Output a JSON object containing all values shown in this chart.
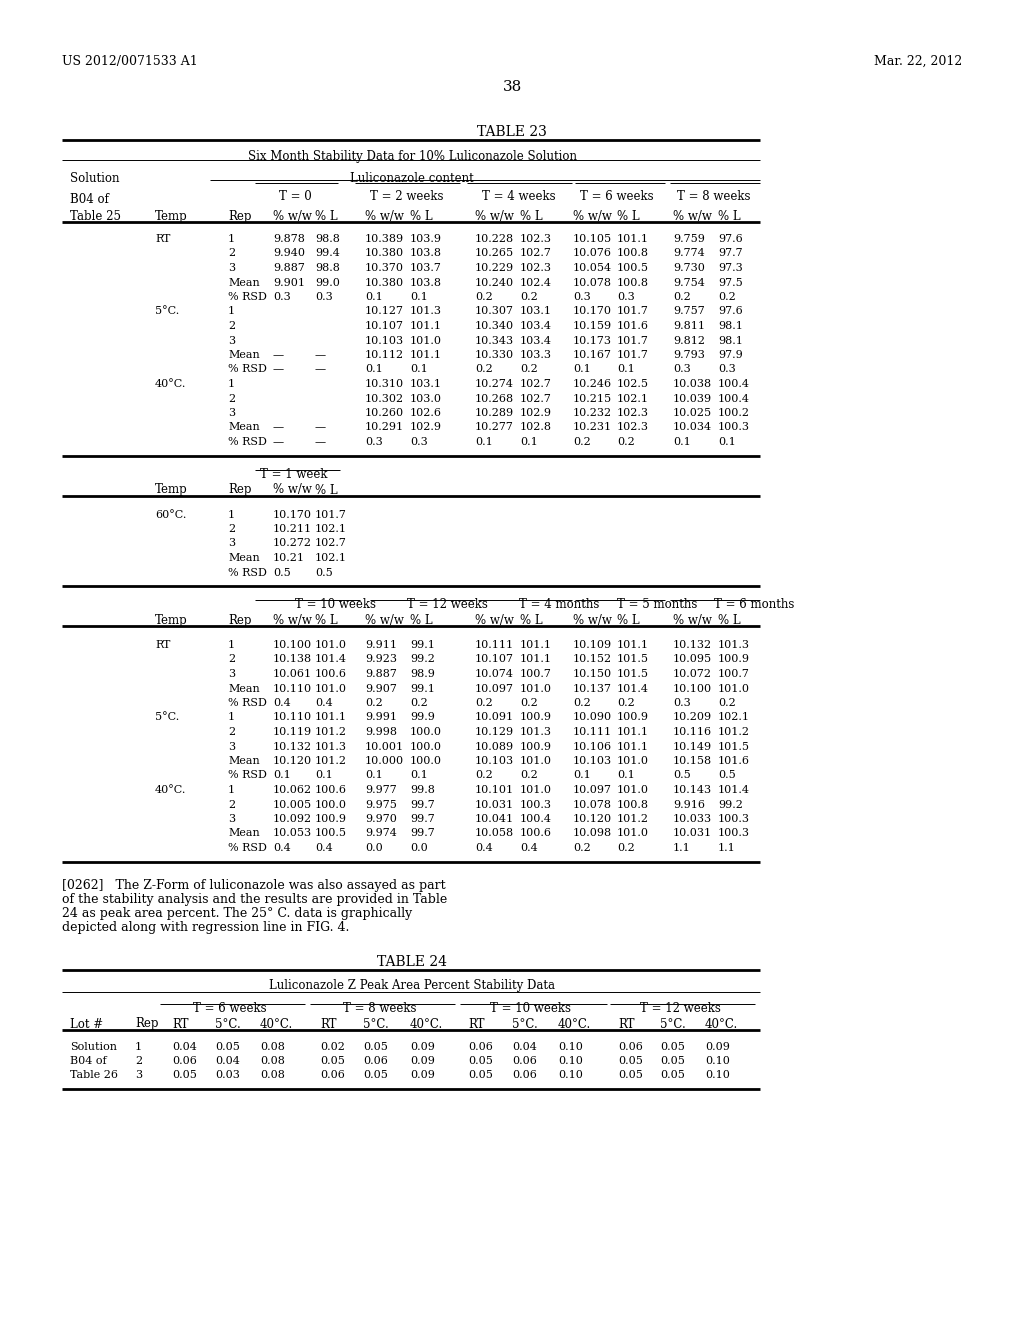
{
  "page_header_left": "US 2012/0071533 A1",
  "page_header_right": "Mar. 22, 2012",
  "page_number": "38",
  "table23_title": "TABLE 23",
  "table23_subtitle": "Six Month Stability Data for 10% Luliconazole Solution",
  "table24_title": "TABLE 24",
  "table24_subtitle": "Luliconazole Z Peak Area Percent Stability Data",
  "paragraph": "[0262]   The Z-Form of luliconazole was also assayed as part of the stability analysis and the results are provided in Table 24 as peak area percent. The 25° C. data is graphically depicted along with regression line in FIG. 4.",
  "bg_color": "#ffffff",
  "text_color": "#000000",
  "font_size": 9
}
